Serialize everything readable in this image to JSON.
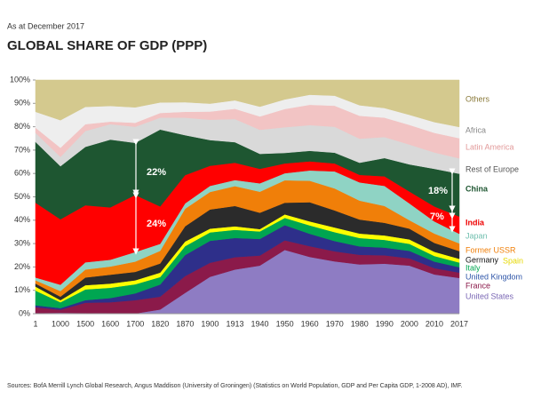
{
  "chart_data": {
    "type": "stacked_area",
    "subtitle": "As at December 2017",
    "title": "GLOBAL SHARE OF GDP (PPP)",
    "source": "Sources: BofA Merrill Lynch Global Research, Angus Maddison (University of Groningen) (Statistics on World Population, GDP and Per Capita GDP, 1-2008 AD), IMF.",
    "categories": [
      "1",
      "1000",
      "1500",
      "1600",
      "1700",
      "1820",
      "1870",
      "1900",
      "1913",
      "1940",
      "1950",
      "1960",
      "1970",
      "1980",
      "1990",
      "2000",
      "2010",
      "2017"
    ],
    "ylim": [
      0,
      100
    ],
    "yticks": [
      {
        "value": 0,
        "label": "0%"
      },
      {
        "value": 10,
        "label": "10%"
      },
      {
        "value": 20,
        "label": "20%"
      },
      {
        "value": 30,
        "label": "30%"
      },
      {
        "value": 40,
        "label": "40%"
      },
      {
        "value": 50,
        "label": "50%"
      },
      {
        "value": 60,
        "label": "60%"
      },
      {
        "value": 70,
        "label": "70%"
      },
      {
        "value": 80,
        "label": "80%"
      },
      {
        "value": 90,
        "label": "90%"
      },
      {
        "value": 100,
        "label": "100%"
      }
    ],
    "series": [
      {
        "name": "United States",
        "color": "#8e7cc3",
        "values": [
          0.3,
          0.4,
          0.3,
          0.2,
          0.1,
          1.8,
          8.9,
          15.8,
          18.9,
          20.6,
          27.3,
          24.3,
          22.4,
          21.1,
          21.4,
          20.6,
          16.8,
          15.3
        ]
      },
      {
        "name": "France",
        "color": "#8b1a4a",
        "values": [
          2.5,
          1.3,
          4.4,
          4.7,
          5.7,
          5.5,
          7.2,
          6,
          5.3,
          4.3,
          4.1,
          4.6,
          4.3,
          4.1,
          3.6,
          3.1,
          2.7,
          2.3
        ]
      },
      {
        "name": "United Kingdom",
        "color": "#2e2f8a",
        "values": [
          0.8,
          0.7,
          1.1,
          1.8,
          2.9,
          5.2,
          9,
          9.4,
          8.2,
          7.1,
          6.5,
          5.3,
          4.4,
          3.6,
          3.3,
          3.2,
          2.8,
          2.3
        ]
      },
      {
        "name": "Italy",
        "color": "#00a651",
        "values": [
          6.3,
          2.5,
          4.6,
          4.4,
          3.9,
          3.2,
          3.8,
          3.6,
          3.5,
          3.2,
          3.1,
          3.6,
          3.8,
          3.6,
          3.3,
          3,
          2.4,
          2
        ]
      },
      {
        "name": "Spain",
        "color": "#ffff00",
        "values": [
          1.7,
          0.9,
          1.8,
          1.8,
          1.7,
          1.9,
          2,
          1.6,
          1.5,
          1,
          1.5,
          1.7,
          2,
          1.9,
          1.9,
          1.9,
          1.8,
          1.6
        ]
      },
      {
        "name": "Germany",
        "color": "#2b2b2b",
        "values": [
          1.3,
          1.5,
          3.3,
          3.8,
          3.6,
          3.9,
          6.5,
          8.2,
          8.7,
          7,
          5,
          8.2,
          7.3,
          6,
          5.4,
          4.6,
          3.8,
          3.3
        ]
      },
      {
        "name": "Former USSR",
        "color": "#f07f09",
        "values": [
          1.4,
          2.4,
          3.4,
          3.5,
          4.4,
          5.4,
          7.5,
          7.5,
          8.5,
          9,
          9.6,
          9.2,
          9.4,
          8.1,
          7.2,
          3.6,
          4,
          3.3
        ]
      },
      {
        "name": "Japan",
        "color": "#8fd3c4",
        "values": [
          1.2,
          2.7,
          3.1,
          2.9,
          4.1,
          3,
          2.3,
          2.6,
          2.6,
          3.6,
          3,
          4.4,
          7.3,
          7.8,
          8.6,
          7.2,
          5.2,
          4.1
        ]
      },
      {
        "name": "India",
        "color": "#ff0000",
        "values": [
          32,
          28,
          24.4,
          22.4,
          24.4,
          16,
          12.1,
          8.6,
          7.4,
          6.2,
          4.2,
          3.9,
          3.4,
          3.2,
          4.1,
          5.1,
          6.4,
          7.4
        ]
      },
      {
        "name": "China",
        "color": "#1e5631",
        "values": [
          26,
          22.7,
          25,
          29,
          22.3,
          32.9,
          17.1,
          11,
          8.8,
          6.4,
          4.5,
          4.5,
          4.6,
          5.2,
          7.8,
          11.6,
          16.1,
          18.3
        ]
      },
      {
        "name": "Rest of Europe",
        "color": "#d9d9d9",
        "values": [
          3.9,
          4,
          6.8,
          6.6,
          6.9,
          5.1,
          7.5,
          8.7,
          9.9,
          10.3,
          11,
          11,
          11.1,
          10.3,
          9,
          8.5,
          7,
          6.6
        ]
      },
      {
        "name": "Latin America",
        "color": "#f2c4c4",
        "values": [
          2.2,
          3.9,
          2.9,
          1.1,
          1.7,
          2,
          2.5,
          3.5,
          4.4,
          5.7,
          7.8,
          8.7,
          9,
          9.8,
          8.3,
          8.4,
          8.4,
          8.6
        ]
      },
      {
        "name": "Africa",
        "color": "#eeeeee",
        "values": [
          6.8,
          11.8,
          7.4,
          6.7,
          6.6,
          4.5,
          4.1,
          3.4,
          3.6,
          4.2,
          4.1,
          4.3,
          4.3,
          4.5,
          4.1,
          4.3,
          4.6,
          4.8
        ]
      },
      {
        "name": "Others",
        "color": "#d4c98e",
        "values": [
          13.6,
          17.2,
          11.5,
          11.1,
          11.7,
          9.6,
          9.5,
          10.1,
          8.7,
          11.4,
          8.3,
          6.3,
          6.7,
          10.8,
          12,
          14.9,
          18,
          20.1
        ]
      }
    ],
    "annotations": [
      {
        "text": "22%"
      },
      {
        "text": "24%"
      },
      {
        "text": "18%"
      },
      {
        "text": "7%"
      }
    ]
  }
}
